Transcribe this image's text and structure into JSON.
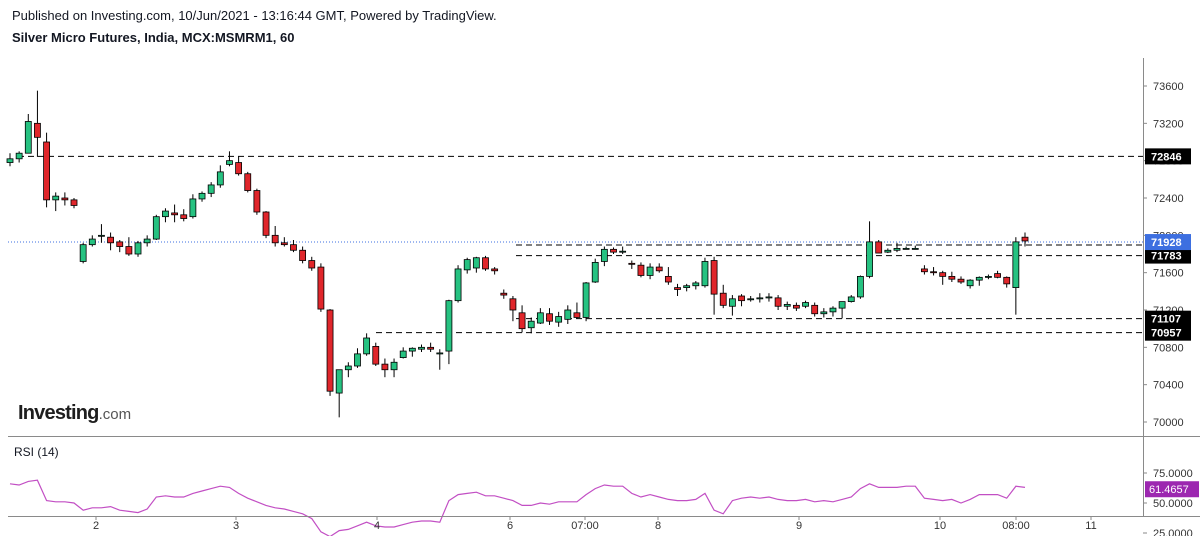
{
  "header": {
    "published": "Published on Investing.com, 10/Jun/2021 - 13:16:44 GMT, Powered by TradingView.",
    "symbol": "Silver Micro Futures, India, MCX:MSMRM1, 60"
  },
  "logo": {
    "main": "Investing",
    "suffix": ".com"
  },
  "colors": {
    "up": "#26c281",
    "down": "#e0262b",
    "last_price": "#3d6fe0",
    "rsi_line": "#c24fc4",
    "rsi_badge": "#9c27b0",
    "grid_dash": "#000000"
  },
  "chart_data": [
    {
      "type": "candlestick",
      "title": "Silver Micro Futures, India, MCX:MSMRM1, 60",
      "x_ticks": [
        "2",
        "3",
        "4",
        "6",
        "07:00",
        "8",
        "9",
        "10",
        "08:00",
        "11"
      ],
      "y_ticks": [
        70000,
        70400,
        70800,
        71200,
        71600,
        72000,
        72400,
        72800,
        73200,
        73600
      ],
      "ylim": [
        69850,
        73800
      ],
      "last_price": 71928,
      "levels": [
        {
          "label": "72846",
          "value": 72846
        },
        {
          "label": "71896",
          "value": 71896
        },
        {
          "label": "71783",
          "value": 71783
        },
        {
          "label": "71107",
          "value": 71107
        },
        {
          "label": "70957",
          "value": 70957
        }
      ],
      "candles": [
        [
          72780,
          72880,
          72740,
          72820
        ],
        [
          72820,
          72900,
          72780,
          72880
        ],
        [
          72880,
          73300,
          72880,
          73220
        ],
        [
          73200,
          73550,
          72840,
          73050
        ],
        [
          73000,
          73100,
          72300,
          72380
        ],
        [
          72380,
          72460,
          72260,
          72420
        ],
        [
          72400,
          72460,
          72320,
          72380
        ],
        [
          72380,
          72400,
          72290,
          72320
        ],
        [
          71720,
          71920,
          71700,
          71900
        ],
        [
          71900,
          72000,
          71880,
          71960
        ],
        [
          71990,
          72120,
          71920,
          72000
        ],
        [
          71980,
          72030,
          71840,
          71920
        ],
        [
          71930,
          71950,
          71820,
          71880
        ],
        [
          71880,
          71980,
          71780,
          71800
        ],
        [
          71800,
          71940,
          71770,
          71920
        ],
        [
          71920,
          72000,
          71880,
          71960
        ],
        [
          71960,
          72220,
          71950,
          72200
        ],
        [
          72200,
          72290,
          72140,
          72260
        ],
        [
          72240,
          72330,
          72140,
          72220
        ],
        [
          72220,
          72280,
          72150,
          72180
        ],
        [
          72200,
          72440,
          72180,
          72390
        ],
        [
          72390,
          72470,
          72360,
          72450
        ],
        [
          72450,
          72570,
          72410,
          72540
        ],
        [
          72540,
          72750,
          72510,
          72680
        ],
        [
          72760,
          72900,
          72740,
          72800
        ],
        [
          72780,
          72850,
          72640,
          72660
        ],
        [
          72660,
          72680,
          72460,
          72480
        ],
        [
          72480,
          72500,
          72220,
          72250
        ],
        [
          72250,
          72260,
          71970,
          72000
        ],
        [
          72000,
          72100,
          71880,
          71920
        ],
        [
          71920,
          71980,
          71880,
          71900
        ],
        [
          71900,
          71950,
          71820,
          71840
        ],
        [
          71840,
          71880,
          71700,
          71730
        ],
        [
          71730,
          71770,
          71620,
          71650
        ],
        [
          71660,
          71700,
          71180,
          71210
        ],
        [
          71200,
          71210,
          70280,
          70330
        ],
        [
          70310,
          70560,
          70050,
          70560
        ],
        [
          70560,
          70640,
          70480,
          70600
        ],
        [
          70600,
          70790,
          70580,
          70730
        ],
        [
          70730,
          70950,
          70710,
          70900
        ],
        [
          70810,
          70850,
          70600,
          70620
        ],
        [
          70620,
          70680,
          70480,
          70560
        ],
        [
          70560,
          70680,
          70480,
          70640
        ],
        [
          70690,
          70800,
          70680,
          70760
        ],
        [
          70760,
          70800,
          70700,
          70790
        ],
        [
          70780,
          70830,
          70750,
          70800
        ],
        [
          70800,
          70850,
          70750,
          70780
        ],
        [
          70740,
          70780,
          70560,
          70740
        ],
        [
          70760,
          71310,
          70620,
          71300
        ],
        [
          71300,
          71680,
          71280,
          71640
        ],
        [
          71630,
          71760,
          71590,
          71740
        ],
        [
          71650,
          71770,
          71600,
          71760
        ],
        [
          71760,
          71780,
          71620,
          71640
        ],
        [
          71640,
          71660,
          71580,
          71620
        ],
        [
          71380,
          71420,
          71320,
          71360
        ],
        [
          71320,
          71350,
          71080,
          71200
        ],
        [
          71170,
          71250,
          70960,
          71000
        ],
        [
          71010,
          71120,
          70950,
          71080
        ],
        [
          71060,
          71220,
          71050,
          71170
        ],
        [
          71160,
          71220,
          71040,
          71080
        ],
        [
          71070,
          71180,
          71020,
          71130
        ],
        [
          71100,
          71250,
          71050,
          71200
        ],
        [
          71170,
          71280,
          71110,
          71120
        ],
        [
          71120,
          71500,
          71080,
          71490
        ],
        [
          71500,
          71750,
          71490,
          71710
        ],
        [
          71720,
          71880,
          71670,
          71850
        ],
        [
          71850,
          71870,
          71800,
          71820
        ],
        [
          71820,
          71880,
          71800,
          71830
        ],
        [
          71700,
          71730,
          71640,
          71690
        ],
        [
          71680,
          71710,
          71550,
          71570
        ],
        [
          71570,
          71700,
          71530,
          71660
        ],
        [
          71660,
          71700,
          71600,
          71620
        ],
        [
          71560,
          71660,
          71470,
          71500
        ],
        [
          71440,
          71480,
          71350,
          71420
        ],
        [
          71440,
          71480,
          71400,
          71460
        ],
        [
          71460,
          71510,
          71420,
          71490
        ],
        [
          71460,
          71760,
          71440,
          71720
        ],
        [
          71730,
          71770,
          71150,
          71370
        ],
        [
          71380,
          71470,
          71220,
          71250
        ],
        [
          71240,
          71360,
          71140,
          71320
        ],
        [
          71350,
          71370,
          71240,
          71300
        ],
        [
          71320,
          71350,
          71290,
          71320
        ],
        [
          71320,
          71380,
          71280,
          71330
        ],
        [
          71340,
          71380,
          71290,
          71340
        ],
        [
          71330,
          71360,
          71200,
          71240
        ],
        [
          71240,
          71290,
          71200,
          71260
        ],
        [
          71250,
          71280,
          71190,
          71220
        ],
        [
          71240,
          71300,
          71220,
          71280
        ],
        [
          71250,
          71280,
          71130,
          71160
        ],
        [
          71160,
          71220,
          71120,
          71180
        ],
        [
          71180,
          71240,
          71130,
          71220
        ],
        [
          71220,
          71290,
          71110,
          71290
        ],
        [
          71290,
          71360,
          71280,
          71340
        ],
        [
          71340,
          71570,
          71320,
          71560
        ],
        [
          71560,
          72150,
          71540,
          71930
        ],
        [
          71930,
          71950,
          71810,
          71810
        ],
        [
          71820,
          71860,
          71810,
          71840
        ],
        [
          71840,
          71920,
          71820,
          71860
        ],
        [
          71860,
          71880,
          71850,
          71860
        ],
        [
          71860,
          71890,
          71850,
          71860
        ],
        [
          71640,
          71680,
          71580,
          71610
        ],
        [
          71610,
          71660,
          71570,
          71600
        ],
        [
          71600,
          71620,
          71470,
          71560
        ],
        [
          71560,
          71610,
          71500,
          71530
        ],
        [
          71530,
          71560,
          71480,
          71500
        ],
        [
          71460,
          71530,
          71430,
          71520
        ],
        [
          71520,
          71560,
          71460,
          71550
        ],
        [
          71560,
          71580,
          71530,
          71560
        ],
        [
          71590,
          71620,
          71540,
          71550
        ],
        [
          71550,
          71560,
          71440,
          71480
        ],
        [
          71440,
          71980,
          71150,
          71930
        ],
        [
          71980,
          72030,
          71880,
          71940
        ]
      ]
    },
    {
      "type": "line",
      "title": "RSI (14)",
      "label": "RSI (14)",
      "y_ticks": [
        25,
        50,
        75
      ],
      "y_tick_labels": [
        "25.0000",
        "50.0000",
        "75.0000"
      ],
      "ylim": [
        20,
        80
      ],
      "current_value": "61.4657",
      "values": [
        66,
        65,
        68,
        69,
        52,
        51,
        51,
        50,
        44,
        46,
        46,
        47,
        44,
        43,
        42,
        45,
        55,
        56,
        55,
        55,
        58,
        60,
        62,
        64,
        63,
        58,
        54,
        51,
        48,
        46,
        45,
        43,
        41,
        37,
        26,
        22,
        27,
        28,
        31,
        34,
        31,
        30,
        30,
        32,
        34,
        35,
        35,
        34,
        52,
        57,
        58,
        59,
        56,
        56,
        54,
        52,
        48,
        48,
        50,
        49,
        51,
        51,
        51,
        57,
        62,
        65,
        64,
        64,
        58,
        55,
        57,
        55,
        53,
        52,
        52,
        53,
        58,
        44,
        41,
        52,
        54,
        55,
        54,
        55,
        53,
        52,
        52,
        53,
        51,
        52,
        51,
        53,
        55,
        62,
        66,
        63,
        63,
        63,
        64,
        64,
        54,
        53,
        52,
        53,
        50,
        53,
        57,
        57,
        57,
        54,
        64,
        63
      ]
    }
  ]
}
